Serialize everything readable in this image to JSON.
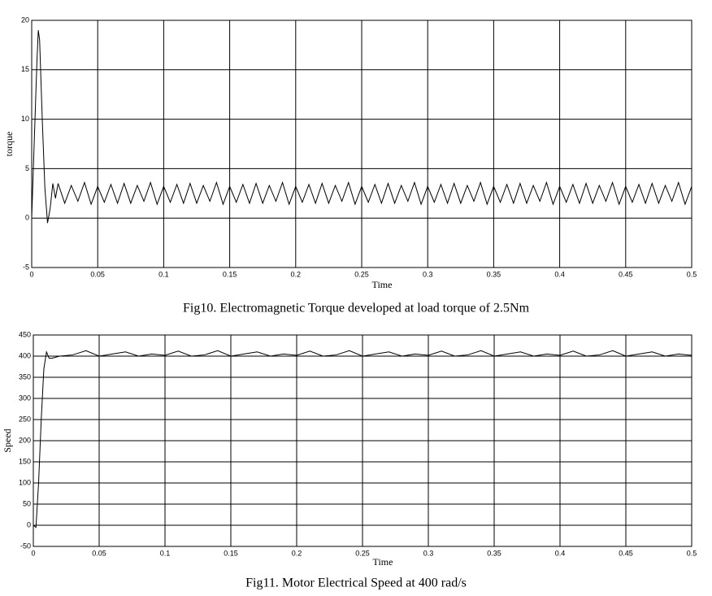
{
  "chart_data": [
    {
      "type": "line",
      "title": "Fig10. Electromagnetic Torque developed at load torque of 2.5Nm",
      "ylabel": "torque",
      "xlabel": "Time",
      "color": "#000000",
      "grid": true,
      "xlim": [
        0,
        0.5
      ],
      "xticks": [
        0,
        0.05,
        0.1,
        0.15,
        0.2,
        0.25,
        0.3,
        0.35,
        0.4,
        0.45,
        0.5
      ],
      "ylim": [
        -5,
        20
      ],
      "yticks": [
        -5,
        0,
        5,
        10,
        15,
        20
      ],
      "x": [
        0,
        0.002,
        0.004,
        0.005,
        0.006,
        0.008,
        0.01,
        0.012,
        0.014,
        0.016,
        0.018,
        0.02,
        0.025,
        0.03,
        0.035,
        0.04,
        0.045,
        0.05,
        0.055,
        0.06,
        0.065,
        0.07,
        0.075,
        0.08,
        0.085,
        0.09,
        0.095,
        0.1,
        0.105,
        0.11,
        0.115,
        0.12,
        0.125,
        0.13,
        0.135,
        0.14,
        0.145,
        0.15,
        0.155,
        0.16,
        0.165,
        0.17,
        0.175,
        0.18,
        0.185,
        0.19,
        0.195,
        0.2,
        0.205,
        0.21,
        0.215,
        0.22,
        0.225,
        0.23,
        0.235,
        0.24,
        0.245,
        0.25,
        0.255,
        0.26,
        0.265,
        0.27,
        0.275,
        0.28,
        0.285,
        0.29,
        0.295,
        0.3,
        0.305,
        0.31,
        0.315,
        0.32,
        0.325,
        0.33,
        0.335,
        0.34,
        0.345,
        0.35,
        0.355,
        0.36,
        0.365,
        0.37,
        0.375,
        0.38,
        0.385,
        0.39,
        0.395,
        0.4,
        0.405,
        0.41,
        0.415,
        0.42,
        0.425,
        0.43,
        0.435,
        0.44,
        0.445,
        0.45,
        0.455,
        0.46,
        0.465,
        0.47,
        0.475,
        0.48,
        0.485,
        0.49,
        0.495,
        0.5
      ],
      "values": [
        0,
        8,
        16,
        19,
        18,
        10,
        3,
        -0.5,
        1,
        3.5,
        2,
        3.5,
        1.5,
        3.3,
        1.7,
        3.6,
        1.4,
        3.2,
        1.6,
        3.4,
        1.5,
        3.5,
        1.5,
        3.3,
        1.7,
        3.6,
        1.4,
        3.2,
        1.6,
        3.4,
        1.5,
        3.5,
        1.5,
        3.3,
        1.7,
        3.6,
        1.4,
        3.2,
        1.6,
        3.4,
        1.5,
        3.5,
        1.5,
        3.3,
        1.7,
        3.6,
        1.4,
        3.2,
        1.6,
        3.4,
        1.5,
        3.5,
        1.5,
        3.3,
        1.7,
        3.6,
        1.4,
        3.2,
        1.6,
        3.4,
        1.5,
        3.5,
        1.5,
        3.3,
        1.7,
        3.6,
        1.4,
        3.2,
        1.6,
        3.4,
        1.5,
        3.5,
        1.5,
        3.3,
        1.7,
        3.6,
        1.4,
        3.2,
        1.6,
        3.4,
        1.5,
        3.5,
        1.5,
        3.3,
        1.7,
        3.6,
        1.4,
        3.2,
        1.6,
        3.4,
        1.5,
        3.5,
        1.5,
        3.3,
        1.7,
        3.6,
        1.4,
        3.2,
        1.6,
        3.4,
        1.5,
        3.5,
        1.5,
        3.3,
        1.7,
        3.6,
        1.4,
        3.2
      ]
    },
    {
      "type": "line",
      "title": "Fig11.  Motor Electrical Speed at 400 rad/s",
      "ylabel": "Speed",
      "xlabel": "Time",
      "color": "#000000",
      "grid": true,
      "xlim": [
        0,
        0.5
      ],
      "xticks": [
        0,
        0.05,
        0.1,
        0.15,
        0.2,
        0.25,
        0.3,
        0.35,
        0.4,
        0.45,
        0.5
      ],
      "ylim": [
        -50,
        450
      ],
      "yticks": [
        -50,
        0,
        50,
        100,
        150,
        200,
        250,
        300,
        350,
        400,
        450
      ],
      "x": [
        0,
        0.002,
        0.004,
        0.006,
        0.008,
        0.01,
        0.012,
        0.014,
        0.02,
        0.03,
        0.04,
        0.05,
        0.06,
        0.07,
        0.08,
        0.09,
        0.1,
        0.11,
        0.12,
        0.13,
        0.14,
        0.15,
        0.16,
        0.17,
        0.18,
        0.19,
        0.2,
        0.21,
        0.22,
        0.23,
        0.24,
        0.25,
        0.26,
        0.27,
        0.28,
        0.29,
        0.3,
        0.31,
        0.32,
        0.33,
        0.34,
        0.35,
        0.36,
        0.37,
        0.38,
        0.39,
        0.4,
        0.41,
        0.42,
        0.43,
        0.44,
        0.45,
        0.46,
        0.47,
        0.48,
        0.49,
        0.5
      ],
      "values": [
        0,
        -5,
        100,
        250,
        370,
        410,
        395,
        395,
        400,
        403,
        413,
        400,
        405,
        410,
        400,
        405,
        402,
        412,
        400,
        403,
        413,
        400,
        405,
        410,
        400,
        405,
        402,
        412,
        400,
        403,
        413,
        400,
        405,
        410,
        400,
        405,
        402,
        412,
        400,
        403,
        413,
        400,
        405,
        410,
        400,
        405,
        402,
        412,
        400,
        403,
        413,
        400,
        405,
        410,
        400,
        405,
        402
      ]
    }
  ]
}
